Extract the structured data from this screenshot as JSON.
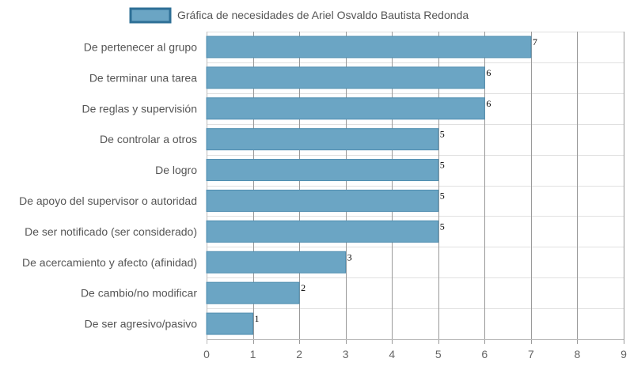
{
  "chart_data": {
    "type": "bar",
    "orientation": "horizontal",
    "legend": {
      "label": "Gráfica de necesidades de Ariel Osvaldo Bautista Redonda",
      "placement": "top-center"
    },
    "categories": [
      "De pertenecer al grupo",
      "De terminar una tarea",
      "De reglas y supervisión",
      "De controlar a otros",
      "De logro",
      "De apoyo del supervisor o autoridad",
      "De ser notificado (ser considerado)",
      "De acercamiento y afecto (afinidad)",
      "De cambio/no modificar",
      "De ser agresivo/pasivo"
    ],
    "series": [
      {
        "name": "Gráfica de necesidades de Ariel Osvaldo Bautista Redonda",
        "values": [
          7,
          6,
          6,
          5,
          5,
          5,
          5,
          3,
          2,
          1
        ]
      }
    ],
    "xlim": [
      0,
      9
    ],
    "xticks": [
      "0",
      "1",
      "2",
      "3",
      "4",
      "5",
      "6",
      "7",
      "8",
      "9"
    ],
    "grid": true,
    "colors": {
      "bar_fill": "#6ba5c4",
      "bar_stroke": "#4f8db0"
    }
  }
}
